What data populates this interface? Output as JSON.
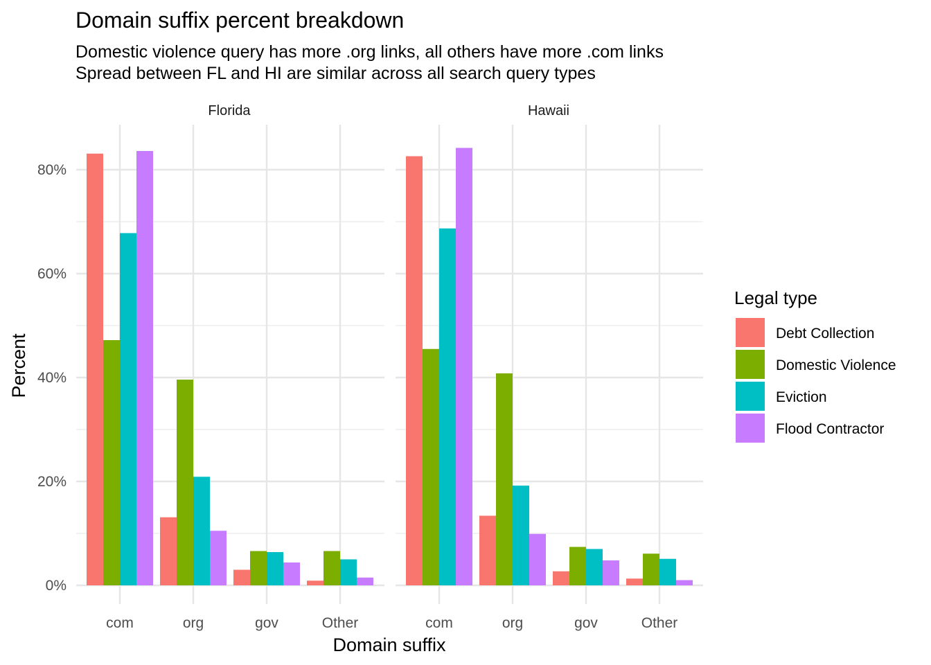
{
  "chart_data": {
    "type": "bar",
    "title": "Domain suffix percent breakdown",
    "subtitle_lines": [
      "Domestic violence query has more .org links, all others have more .com links",
      "Spread between FL and HI are similar across all search query types"
    ],
    "xlabel": "Domain suffix",
    "ylabel": "Percent",
    "categories": [
      "com",
      "org",
      "gov",
      "Other"
    ],
    "y_ticks": [
      "0%",
      "20%",
      "40%",
      "60%",
      "80%"
    ],
    "ylim": [
      0,
      88
    ],
    "grid": true,
    "legend": {
      "title": "Legal type",
      "placement": "right",
      "items": [
        {
          "name": "Debt Collection",
          "color": "#F8766D"
        },
        {
          "name": "Domestic Violence",
          "color": "#7CAE00"
        },
        {
          "name": "Eviction",
          "color": "#00BFC4"
        },
        {
          "name": "Flood Contractor",
          "color": "#C77CFF"
        }
      ]
    },
    "panels": [
      {
        "name": "Florida",
        "series": [
          {
            "name": "Debt Collection",
            "values": [
              83.1,
              13.1,
              3.0,
              0.9
            ]
          },
          {
            "name": "Domestic Violence",
            "values": [
              47.2,
              39.6,
              6.6,
              6.6
            ]
          },
          {
            "name": "Eviction",
            "values": [
              67.8,
              20.9,
              6.4,
              5.0
            ]
          },
          {
            "name": "Flood Contractor",
            "values": [
              83.6,
              10.5,
              4.4,
              1.5
            ]
          }
        ]
      },
      {
        "name": "Hawaii",
        "series": [
          {
            "name": "Debt Collection",
            "values": [
              82.6,
              13.4,
              2.7,
              1.3
            ]
          },
          {
            "name": "Domestic Violence",
            "values": [
              45.5,
              40.8,
              7.4,
              6.1
            ]
          },
          {
            "name": "Eviction",
            "values": [
              68.7,
              19.2,
              7.0,
              5.1
            ]
          },
          {
            "name": "Flood Contractor",
            "values": [
              84.2,
              9.9,
              4.8,
              1.0
            ]
          }
        ]
      }
    ]
  }
}
